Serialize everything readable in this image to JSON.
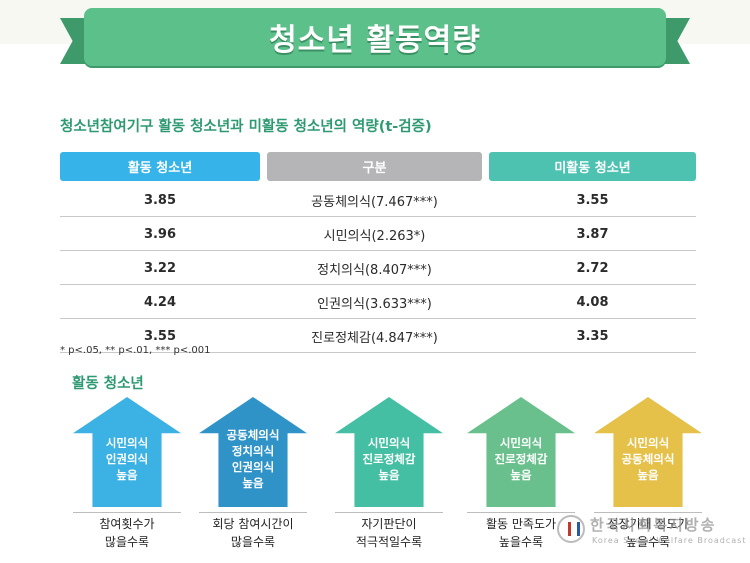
{
  "banner": {
    "title": "청소년 활동역량"
  },
  "table": {
    "title": "청소년참여기구 활동 청소년과 미활동 청소년의 역량(t-검증)",
    "headers": [
      "활동 청소년",
      "구분",
      "미활동 청소년"
    ],
    "rows": [
      {
        "active": "3.85",
        "category": "공동체의식(7.467***)",
        "inactive": "3.55"
      },
      {
        "active": "3.96",
        "category": "시민의식(2.263*)",
        "inactive": "3.87"
      },
      {
        "active": "3.22",
        "category": "정치의식(8.407***)",
        "inactive": "2.72"
      },
      {
        "active": "4.24",
        "category": "인권의식(3.633***)",
        "inactive": "4.08"
      },
      {
        "active": "3.55",
        "category": "진로정체감(4.847***)",
        "inactive": "3.35"
      }
    ],
    "footnote": "* p<.05, ** p<.01, *** p<.001"
  },
  "section": {
    "label": "활동 청소년"
  },
  "arrows": [
    {
      "lines": [
        "시민의식",
        "인권의식",
        "높음"
      ],
      "caption": [
        "참여횟수가",
        "많을수록"
      ],
      "color": "#3bb1e4"
    },
    {
      "lines": [
        "공동체의식",
        "정치의식",
        "인권의식",
        "높음"
      ],
      "caption": [
        "회당 참여시간이",
        "많을수록"
      ],
      "color": "#2f93c8"
    },
    {
      "lines": [
        "시민의식",
        "진로정체감",
        "높음"
      ],
      "caption": [
        "자기판단이",
        "적극적일수록"
      ],
      "color": "#44bfa3"
    },
    {
      "lines": [
        "시민의식",
        "진로정체감",
        "높음"
      ],
      "caption": [
        "활동 만족도가",
        "높을수록"
      ],
      "color": "#69c08c"
    },
    {
      "lines": [
        "시민의식",
        "공동체의식",
        "높음"
      ],
      "caption": [
        "성장기대 정도가",
        "높을수록"
      ],
      "color": "#e5c14a"
    }
  ],
  "watermark": {
    "name": "한국사회복지방송",
    "sub": "Korea Social Welfare Broadcast"
  },
  "colors": {
    "accent_green": "#5cc08a",
    "title_green": "#2f9a72",
    "active_blue": "#36b3e8",
    "inactive_teal": "#4dc2b1",
    "category_gray": "#b5b5b7"
  }
}
